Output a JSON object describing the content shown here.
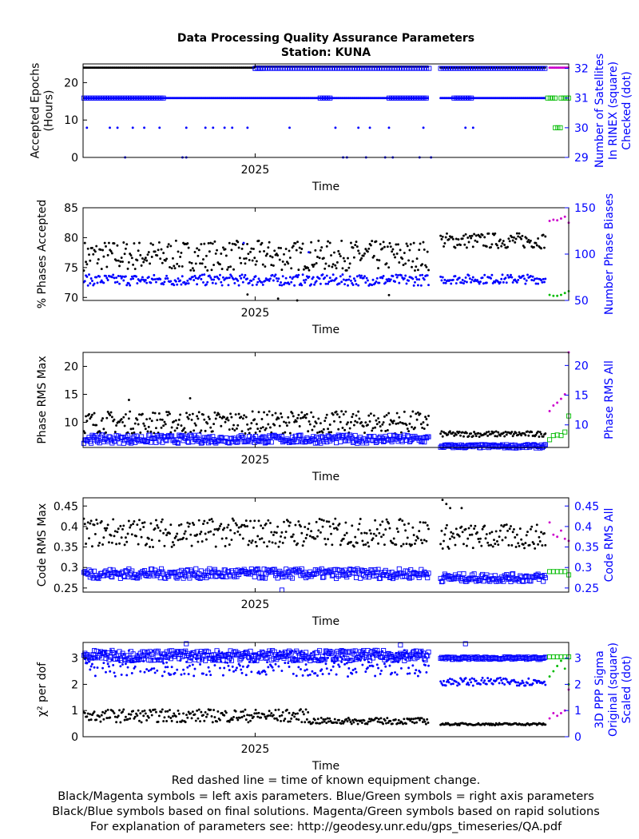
{
  "title": "Data Processing Quality Assurance Parameters",
  "subtitle": "Station: KUNA",
  "footer": [
    "Red dashed line = time of known equipment change.",
    "Black/Magenta symbols = left axis parameters. Blue/Green symbols = right axis parameters",
    "Black/Blue symbols based on final solutions.  Magenta/Green symbols based on rapid solutions",
    "For explanation of parameters see: http://geodesy.unr.edu/gps_timeseries/QA.pdf"
  ],
  "colors": {
    "left": "#000000",
    "right": "#0000ff",
    "rapid_left": "#cc00cc",
    "rapid_right": "#00bb00"
  },
  "chart_data": [
    {
      "type": "scatter",
      "xlabel": "Time",
      "xlim": [
        2024.55,
        2025.82
      ],
      "xticks": [
        2025
      ],
      "xtick_labels": [
        "2025"
      ],
      "ylabel_left": "Accepted Epochs\n(Hours)",
      "ylim_left": [
        0,
        25
      ],
      "yticks_left": [
        0,
        10,
        20
      ],
      "ylabel_right": "Number of Satellites\nIn RINEX (square)\nChecked (dot)",
      "ylim_right": [
        29,
        32.15
      ],
      "yticks_right": [
        29,
        30,
        31,
        32
      ],
      "series": [
        {
          "axis": "left",
          "color": "#000000",
          "marker": "dot",
          "segments": [
            [
              2024.552,
              2025.0,
              24
            ],
            [
              2025.0,
              2025.455,
              24.3
            ],
            [
              2025.485,
              2025.76,
              24
            ]
          ]
        },
        {
          "axis": "right",
          "color": "#0000ff",
          "marker": "square",
          "segments": [
            [
              2024.552,
              2024.76,
              31
            ],
            [
              2025.0,
              2025.02,
              32
            ],
            [
              2025.0,
              2025.455,
              32
            ],
            [
              2025.485,
              2025.76,
              32
            ],
            [
              2025.17,
              2025.2,
              31
            ],
            [
              2025.35,
              2025.45,
              31
            ],
            [
              2025.52,
              2025.57,
              31
            ]
          ]
        },
        {
          "axis": "right",
          "color": "#0000ff",
          "marker": "dot",
          "segments": [
            [
              2024.552,
              2025.0,
              31
            ],
            [
              2025.0,
              2025.455,
              31
            ],
            [
              2025.485,
              2025.76,
              31
            ]
          ]
        },
        {
          "axis": "right",
          "color": "#0000ff",
          "marker": "dot",
          "points": [
            [
              2024.56,
              30
            ],
            [
              2024.62,
              30
            ],
            [
              2024.64,
              30
            ],
            [
              2024.68,
              30
            ],
            [
              2024.71,
              30
            ],
            [
              2024.75,
              30
            ],
            [
              2024.82,
              30
            ],
            [
              2024.87,
              30
            ],
            [
              2024.89,
              30
            ],
            [
              2024.92,
              30
            ],
            [
              2024.94,
              30
            ],
            [
              2024.98,
              30
            ],
            [
              2025.09,
              30
            ],
            [
              2025.21,
              30
            ],
            [
              2025.27,
              30
            ],
            [
              2025.3,
              30
            ],
            [
              2025.35,
              30
            ],
            [
              2025.44,
              30
            ],
            [
              2025.55,
              30
            ],
            [
              2025.57,
              30
            ],
            [
              2024.66,
              29
            ],
            [
              2024.81,
              29
            ],
            [
              2024.82,
              29
            ],
            [
              2025.23,
              29
            ],
            [
              2025.24,
              29
            ],
            [
              2025.29,
              29
            ],
            [
              2025.34,
              29
            ],
            [
              2025.36,
              29
            ],
            [
              2025.43,
              29
            ],
            [
              2025.46,
              29
            ]
          ]
        },
        {
          "axis": "left",
          "color": "#cc00cc",
          "marker": "dot",
          "segments": [
            [
              2025.77,
              2025.82,
              24
            ]
          ]
        },
        {
          "axis": "right",
          "color": "#00bb00",
          "marker": "square",
          "segments": [
            [
              2025.765,
              2025.79,
              31
            ],
            [
              2025.8,
              2025.82,
              31
            ],
            [
              2025.785,
              2025.8,
              30
            ]
          ]
        }
      ]
    },
    {
      "type": "scatter",
      "xlabel": "Time",
      "xlim": [
        2024.55,
        2025.82
      ],
      "xticks": [
        2025
      ],
      "xtick_labels": [
        "2025"
      ],
      "ylabel_left": "% Phases Accepted",
      "ylim_left": [
        69.5,
        85
      ],
      "yticks_left": [
        70,
        75,
        80,
        85
      ],
      "ylabel_right": "Number Phase Biases",
      "ylim_right": [
        50,
        150
      ],
      "yticks_right": [
        50,
        100,
        150
      ],
      "series": [
        {
          "axis": "left",
          "color": "#000000",
          "marker": "dot",
          "ranges": [
            [
              2024.552,
              2025.455,
              77,
              2.5
            ],
            [
              2025.485,
              2025.76,
              79.5,
              1.3
            ]
          ],
          "outliers": [
            [
              2024.98,
              70.5
            ],
            [
              2025.06,
              69.8
            ],
            [
              2025.11,
              69.5
            ],
            [
              2025.35,
              70.4
            ]
          ]
        },
        {
          "axis": "right",
          "color": "#0000ff",
          "marker": "dot",
          "ranges": [
            [
              2024.552,
              2025.455,
              72,
              6
            ],
            [
              2025.485,
              2025.76,
              73,
              5
            ]
          ],
          "outliers": [
            [
              2024.97,
              112
            ],
            [
              2025.14,
              102
            ]
          ]
        },
        {
          "axis": "left",
          "color": "#cc00cc",
          "marker": "dot",
          "points": [
            [
              2025.77,
              82.8
            ],
            [
              2025.78,
              83
            ],
            [
              2025.79,
              82.9
            ],
            [
              2025.8,
              83.2
            ],
            [
              2025.81,
              83.5
            ],
            [
              2025.82,
              82.5
            ]
          ]
        },
        {
          "axis": "right",
          "color": "#00bb00",
          "marker": "dot",
          "points": [
            [
              2025.77,
              56
            ],
            [
              2025.78,
              55
            ],
            [
              2025.79,
              55
            ],
            [
              2025.8,
              56
            ],
            [
              2025.81,
              58
            ],
            [
              2025.82,
              60
            ]
          ]
        }
      ]
    },
    {
      "type": "scatter",
      "xlabel": "Time",
      "xlim": [
        2024.55,
        2025.82
      ],
      "xticks": [
        2025
      ],
      "xtick_labels": [
        "2025"
      ],
      "ylabel_left": "Phase RMS Max",
      "ylim_left": [
        5.5,
        22.5
      ],
      "yticks_left": [
        10,
        15,
        20
      ],
      "ylabel_right": "Phase RMS All",
      "ylim_right": [
        6.2,
        22.2
      ],
      "yticks_right": [
        10,
        15,
        20
      ],
      "series": [
        {
          "axis": "left",
          "color": "#000000",
          "marker": "dot",
          "ranges": [
            [
              2024.552,
              2025.455,
              10,
              2
            ],
            [
              2025.485,
              2025.76,
              7.9,
              0.5
            ]
          ],
          "outliers": [
            [
              2024.67,
              14
            ],
            [
              2024.83,
              14.3
            ]
          ]
        },
        {
          "axis": "right",
          "color": "#0000ff",
          "marker": "square",
          "ranges": [
            [
              2024.552,
              2025.455,
              7.6,
              0.7
            ],
            [
              2025.485,
              2025.76,
              6.4,
              0.3
            ]
          ]
        },
        {
          "axis": "left",
          "color": "#cc00cc",
          "marker": "dot",
          "points": [
            [
              2025.77,
              12
            ],
            [
              2025.78,
              13
            ],
            [
              2025.79,
              13.5
            ],
            [
              2025.8,
              14.2
            ],
            [
              2025.81,
              15
            ],
            [
              2025.82,
              22.5
            ]
          ]
        },
        {
          "axis": "right",
          "color": "#00bb00",
          "marker": "square",
          "points": [
            [
              2025.77,
              7.5
            ],
            [
              2025.78,
              8.2
            ],
            [
              2025.79,
              8.3
            ],
            [
              2025.8,
              8.2
            ],
            [
              2025.81,
              8.8
            ],
            [
              2025.82,
              11.5
            ]
          ]
        }
      ]
    },
    {
      "type": "scatter",
      "xlabel": "Time",
      "xlim": [
        2024.55,
        2025.82
      ],
      "xticks": [
        2025
      ],
      "xtick_labels": [
        "2025"
      ],
      "ylabel_left": "Code RMS Max",
      "ylim_left": [
        0.24,
        0.47
      ],
      "yticks_left": [
        0.25,
        0.3,
        0.35,
        0.4,
        0.45
      ],
      "ylabel_right": "Code RMS All",
      "ylim_right": [
        0.24,
        0.47
      ],
      "yticks_right": [
        0.25,
        0.3,
        0.35,
        0.4,
        0.45
      ],
      "series": [
        {
          "axis": "left",
          "color": "#000000",
          "marker": "dot",
          "ranges": [
            [
              2024.552,
              2025.455,
              0.385,
              0.035
            ],
            [
              2025.485,
              2025.76,
              0.375,
              0.03
            ]
          ],
          "outliers": [
            [
              2025.49,
              0.465
            ],
            [
              2025.5,
              0.455
            ],
            [
              2025.51,
              0.445
            ],
            [
              2025.54,
              0.445
            ]
          ]
        },
        {
          "axis": "right",
          "color": "#0000ff",
          "marker": "square",
          "ranges": [
            [
              2024.552,
              2025.455,
              0.285,
              0.012
            ],
            [
              2025.485,
              2025.76,
              0.275,
              0.01
            ]
          ],
          "outliers": [
            [
              2025.07,
              0.245
            ]
          ]
        },
        {
          "axis": "left",
          "color": "#cc00cc",
          "marker": "dot",
          "points": [
            [
              2025.77,
              0.41
            ],
            [
              2025.78,
              0.38
            ],
            [
              2025.79,
              0.375
            ],
            [
              2025.8,
              0.39
            ],
            [
              2025.81,
              0.37
            ],
            [
              2025.82,
              0.365
            ]
          ]
        },
        {
          "axis": "right",
          "color": "#00bb00",
          "marker": "square",
          "points": [
            [
              2025.77,
              0.29
            ],
            [
              2025.78,
              0.29
            ],
            [
              2025.79,
              0.29
            ],
            [
              2025.8,
              0.29
            ],
            [
              2025.81,
              0.29
            ],
            [
              2025.82,
              0.282
            ]
          ]
        }
      ]
    },
    {
      "type": "scatter",
      "xlabel": "Time",
      "xlim": [
        2024.55,
        2025.82
      ],
      "xticks": [
        2025
      ],
      "xtick_labels": [
        "2025"
      ],
      "ylabel_left": "χ² per dof",
      "ylim_left": [
        0,
        3.6
      ],
      "yticks_left": [
        0,
        1,
        2,
        3
      ],
      "ylabel_right": "3D PPP Sigma\nOriginal (square)\nScaled (dot)",
      "ylim_right": [
        0,
        3.6
      ],
      "yticks_right": [
        0,
        1,
        2,
        3
      ],
      "series": [
        {
          "axis": "left",
          "color": "#000000",
          "marker": "dot",
          "ranges": [
            [
              2024.552,
              2025.14,
              0.8,
              0.25
            ],
            [
              2025.14,
              2025.455,
              0.6,
              0.12
            ],
            [
              2025.485,
              2025.76,
              0.48,
              0.04
            ]
          ]
        },
        {
          "axis": "right",
          "color": "#0000ff",
          "marker": "square",
          "ranges": [
            [
              2024.552,
              2025.455,
              3.1,
              0.2
            ],
            [
              2025.485,
              2025.76,
              3.0,
              0.05
            ]
          ],
          "outliers": [
            [
              2024.82,
              3.55
            ],
            [
              2025.38,
              3.5
            ],
            [
              2025.55,
              3.55
            ]
          ]
        },
        {
          "axis": "right",
          "color": "#0000ff",
          "marker": "dot",
          "ranges": [
            [
              2024.552,
              2025.455,
              2.8,
              0.5
            ],
            [
              2025.485,
              2025.76,
              2.1,
              0.15
            ]
          ]
        },
        {
          "axis": "left",
          "color": "#cc00cc",
          "marker": "dot",
          "points": [
            [
              2025.77,
              0.7
            ],
            [
              2025.78,
              0.9
            ],
            [
              2025.79,
              0.8
            ],
            [
              2025.8,
              0.9
            ],
            [
              2025.81,
              1.0
            ],
            [
              2025.82,
              1.8
            ]
          ]
        },
        {
          "axis": "right",
          "color": "#00bb00",
          "marker": "square",
          "points": [
            [
              2025.77,
              3.05
            ],
            [
              2025.78,
              3.05
            ],
            [
              2025.79,
              3.05
            ],
            [
              2025.8,
              3.05
            ],
            [
              2025.81,
              3.05
            ],
            [
              2025.82,
              3.05
            ]
          ]
        },
        {
          "axis": "right",
          "color": "#00bb00",
          "marker": "dot",
          "points": [
            [
              2025.77,
              2.3
            ],
            [
              2025.78,
              2.5
            ],
            [
              2025.79,
              2.7
            ],
            [
              2025.8,
              2.9
            ],
            [
              2025.81,
              2.6
            ],
            [
              2025.82,
              2.0
            ]
          ]
        }
      ]
    }
  ]
}
